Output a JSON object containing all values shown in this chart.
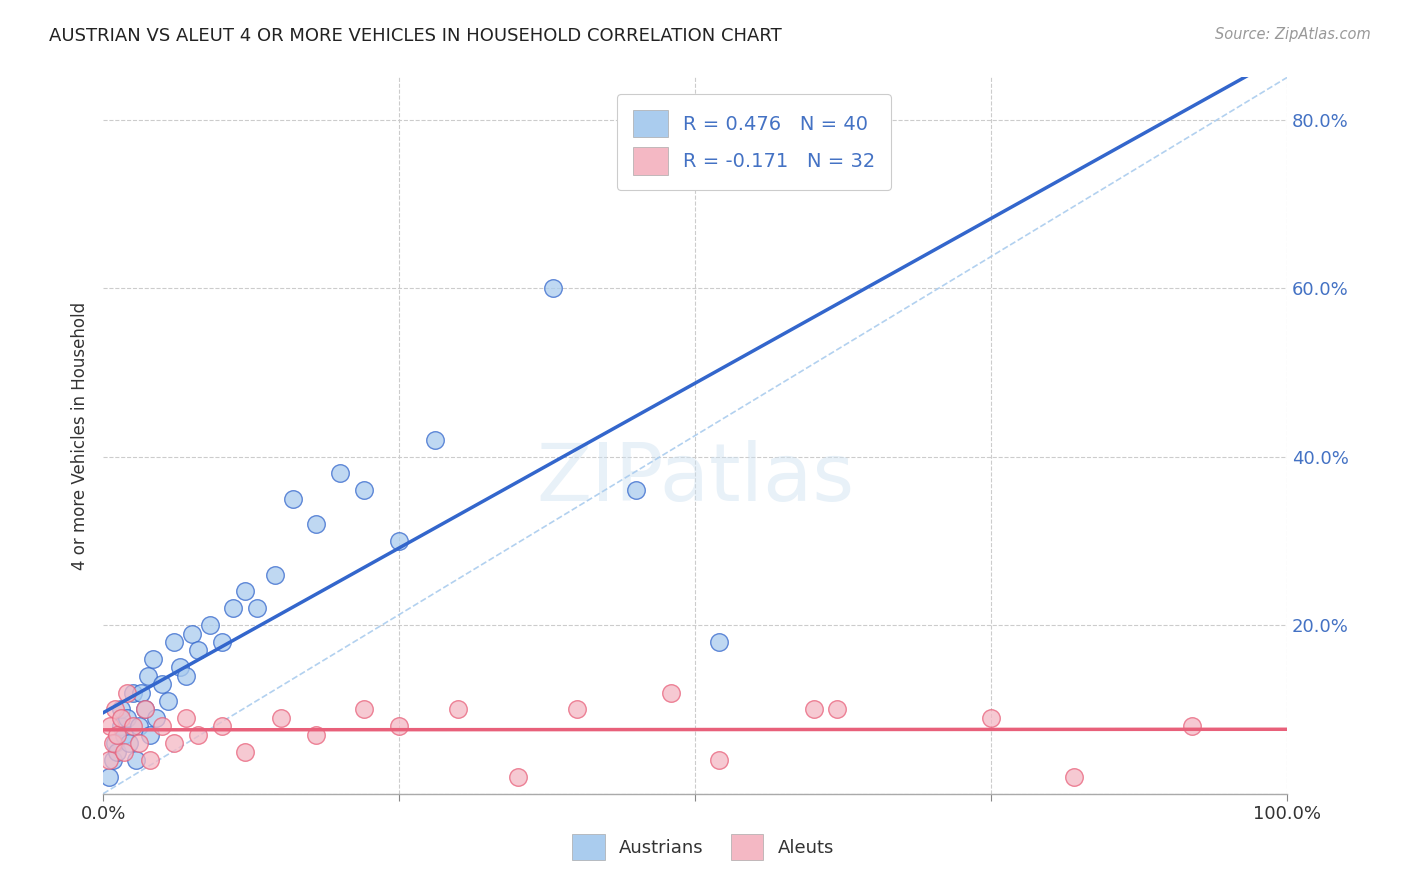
{
  "title": "AUSTRIAN VS ALEUT 4 OR MORE VEHICLES IN HOUSEHOLD CORRELATION CHART",
  "source": "Source: ZipAtlas.com",
  "ylabel": "4 or more Vehicles in Household",
  "xlim": [
    0.0,
    1.0
  ],
  "ylim": [
    0.0,
    0.85
  ],
  "yticks": [
    0.0,
    0.2,
    0.4,
    0.6,
    0.8
  ],
  "ytick_labels": [
    "",
    "20.0%",
    "40.0%",
    "60.0%",
    "80.0%"
  ],
  "xticks": [
    0.0,
    0.25,
    0.5,
    0.75,
    1.0
  ],
  "xtick_labels": [
    "0.0%",
    "",
    "",
    "",
    "100.0%"
  ],
  "legend_r_austrians": "R = 0.476",
  "legend_n_austrians": "N = 40",
  "legend_r_aleuts": "R = -0.171",
  "legend_n_aleuts": "N = 32",
  "austrians_color": "#aaccee",
  "aleuts_color": "#f4b8c4",
  "trendline_austrians_color": "#3366cc",
  "trendline_aleuts_color": "#e8607a",
  "diagonal_color": "#aaccee",
  "background_color": "#ffffff",
  "grid_color": "#cccccc",
  "watermark": "ZIPatlas",
  "austrians_x": [
    0.005,
    0.008,
    0.01,
    0.012,
    0.015,
    0.015,
    0.018,
    0.02,
    0.022,
    0.025,
    0.028,
    0.03,
    0.032,
    0.035,
    0.038,
    0.04,
    0.042,
    0.045,
    0.05,
    0.055,
    0.06,
    0.065,
    0.07,
    0.075,
    0.08,
    0.09,
    0.1,
    0.11,
    0.12,
    0.13,
    0.145,
    0.16,
    0.18,
    0.2,
    0.22,
    0.25,
    0.28,
    0.38,
    0.45,
    0.52
  ],
  "austrians_y": [
    0.02,
    0.04,
    0.06,
    0.05,
    0.08,
    0.1,
    0.07,
    0.09,
    0.06,
    0.12,
    0.04,
    0.08,
    0.12,
    0.1,
    0.14,
    0.07,
    0.16,
    0.09,
    0.13,
    0.11,
    0.18,
    0.15,
    0.14,
    0.19,
    0.17,
    0.2,
    0.18,
    0.22,
    0.24,
    0.22,
    0.26,
    0.35,
    0.32,
    0.38,
    0.36,
    0.3,
    0.42,
    0.6,
    0.36,
    0.18
  ],
  "aleuts_x": [
    0.005,
    0.006,
    0.008,
    0.01,
    0.012,
    0.015,
    0.018,
    0.02,
    0.025,
    0.03,
    0.035,
    0.04,
    0.05,
    0.06,
    0.07,
    0.08,
    0.1,
    0.12,
    0.15,
    0.18,
    0.22,
    0.25,
    0.3,
    0.35,
    0.4,
    0.48,
    0.52,
    0.6,
    0.62,
    0.75,
    0.82,
    0.92
  ],
  "aleuts_y": [
    0.04,
    0.08,
    0.06,
    0.1,
    0.07,
    0.09,
    0.05,
    0.12,
    0.08,
    0.06,
    0.1,
    0.04,
    0.08,
    0.06,
    0.09,
    0.07,
    0.08,
    0.05,
    0.09,
    0.07,
    0.1,
    0.08,
    0.1,
    0.02,
    0.1,
    0.12,
    0.04,
    0.1,
    0.1,
    0.09,
    0.02,
    0.08
  ]
}
